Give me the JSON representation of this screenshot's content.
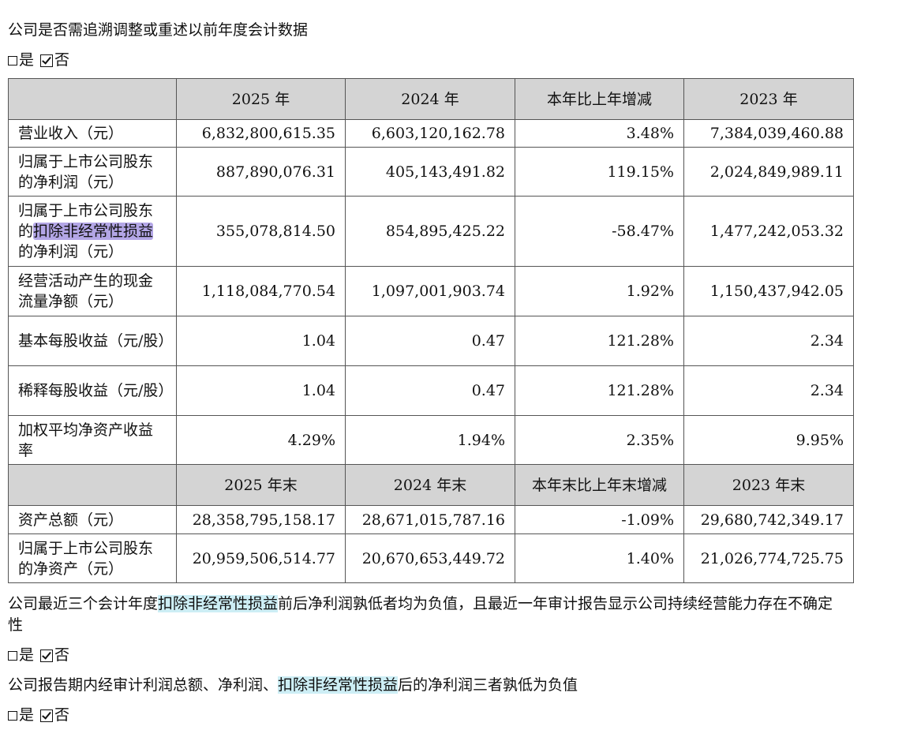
{
  "q1": "公司是否需追溯调整或重述以前年度会计数据",
  "checkbox_yes": "是",
  "checkbox_no": "否",
  "header1": [
    "2025 年",
    "2024 年",
    "本年比上年增减",
    "2023 年"
  ],
  "rows1": [
    {
      "label": "营业收入（元）",
      "v": [
        "6,832,800,615.35",
        "6,603,120,162.78",
        "3.48%",
        "7,384,039,460.88"
      ]
    },
    {
      "label": "归属于上市公司股东的净利润（元）",
      "v": [
        "887,890,076.31",
        "405,143,491.82",
        "119.15%",
        "2,024,849,989.11"
      ]
    },
    {
      "label_a": "归属于上市公司股东的",
      "label_hl": "扣除非经常性损益",
      "label_b": "的净利润（元）",
      "v": [
        "355,078,814.50",
        "854,895,425.22",
        "-58.47%",
        "1,477,242,053.32"
      ]
    },
    {
      "label": "经营活动产生的现金流量净额（元）",
      "v": [
        "1,118,084,770.54",
        "1,097,001,903.74",
        "1.92%",
        "1,150,437,942.05"
      ]
    },
    {
      "label": "基本每股收益（元/股）",
      "v": [
        "1.04",
        "0.47",
        "121.28%",
        "2.34"
      ]
    },
    {
      "label": "稀释每股收益（元/股）",
      "v": [
        "1.04",
        "0.47",
        "121.28%",
        "2.34"
      ]
    },
    {
      "label": "加权平均净资产收益率",
      "v": [
        "4.29%",
        "1.94%",
        "2.35%",
        "9.95%"
      ]
    }
  ],
  "header2": [
    "2025 年末",
    "2024 年末",
    "本年末比上年末增减",
    "2023 年末"
  ],
  "rows2": [
    {
      "label": "资产总额（元）",
      "v": [
        "28,358,795,158.17",
        "28,671,015,787.16",
        "-1.09%",
        "29,680,742,349.17"
      ]
    },
    {
      "label": "归属于上市公司股东的净资产（元）",
      "v": [
        "20,959,506,514.77",
        "20,670,653,449.72",
        "1.40%",
        "21,026,774,725.75"
      ]
    }
  ],
  "p2_a": "公司最近三个会计年度",
  "p2_hl": "扣除非经常性损益",
  "p2_b": "前后净利润孰低者均为负值，且最近一年审计报告显示公司持续经营能力存在不确定性",
  "p3_a": "公司报告期内经审计利润总额、净利润、",
  "p3_hl": "扣除非经常性损益",
  "p3_b": "后的净利润三者孰低为负值"
}
